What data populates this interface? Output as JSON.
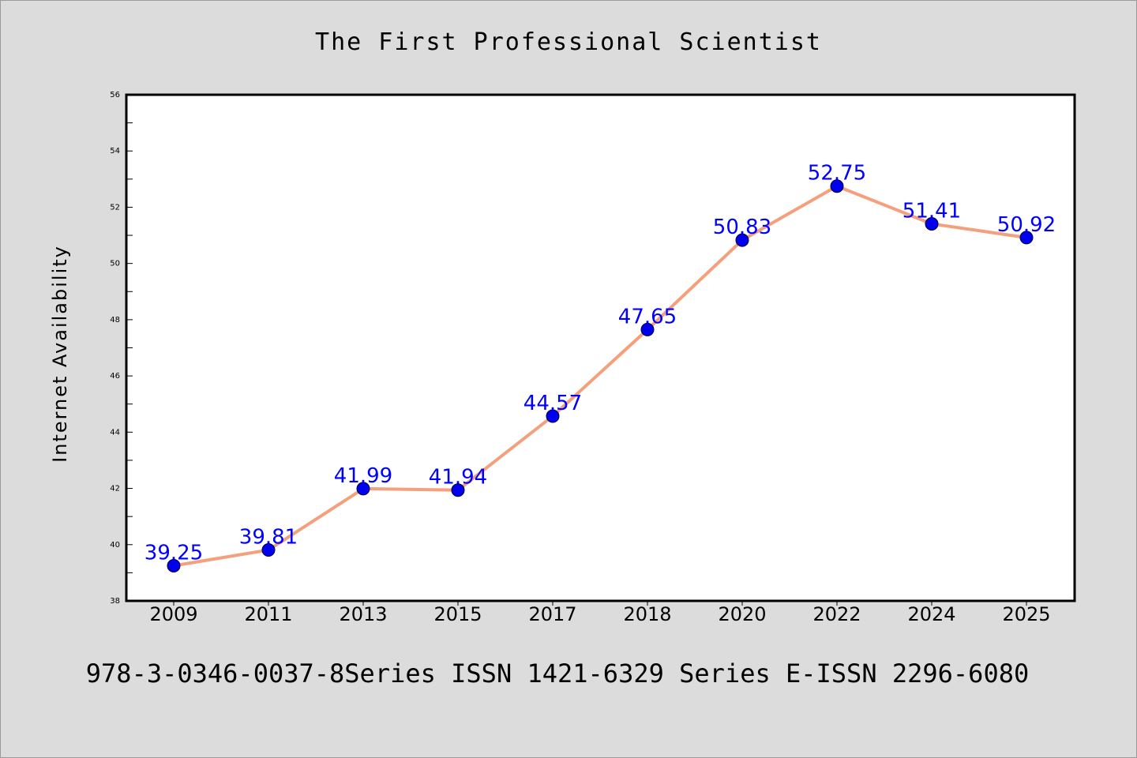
{
  "chart_data": {
    "type": "line",
    "title": "The First Professional Scientist",
    "xlabel": "",
    "ylabel": "Internet Availability",
    "footer": "978-3-0346-0037-8Series ISSN 1421-6329 Series E-ISSN 2296-6080",
    "categories": [
      "2009",
      "2011",
      "2013",
      "2015",
      "2017",
      "2018",
      "2020",
      "2022",
      "2024",
      "2025"
    ],
    "series": [
      {
        "values": [
          39.25,
          39.81,
          41.99,
          41.94,
          44.57,
          47.65,
          50.83,
          52.75,
          51.41,
          50.92
        ],
        "labels": [
          "39.25",
          "39.81",
          "41.99",
          "41.94",
          "44.57",
          "47.65",
          "50.83",
          "52.75",
          "51.41",
          "50.92"
        ],
        "line_color": "#f4a07c",
        "marker_color": "#0000ee"
      }
    ],
    "ylim": [
      38,
      56
    ],
    "yticks": [
      "38",
      "40",
      "42",
      "44",
      "46",
      "48",
      "50",
      "52",
      "54",
      "56"
    ],
    "grid": false,
    "legend": "none",
    "label_color": "#0000ff"
  }
}
